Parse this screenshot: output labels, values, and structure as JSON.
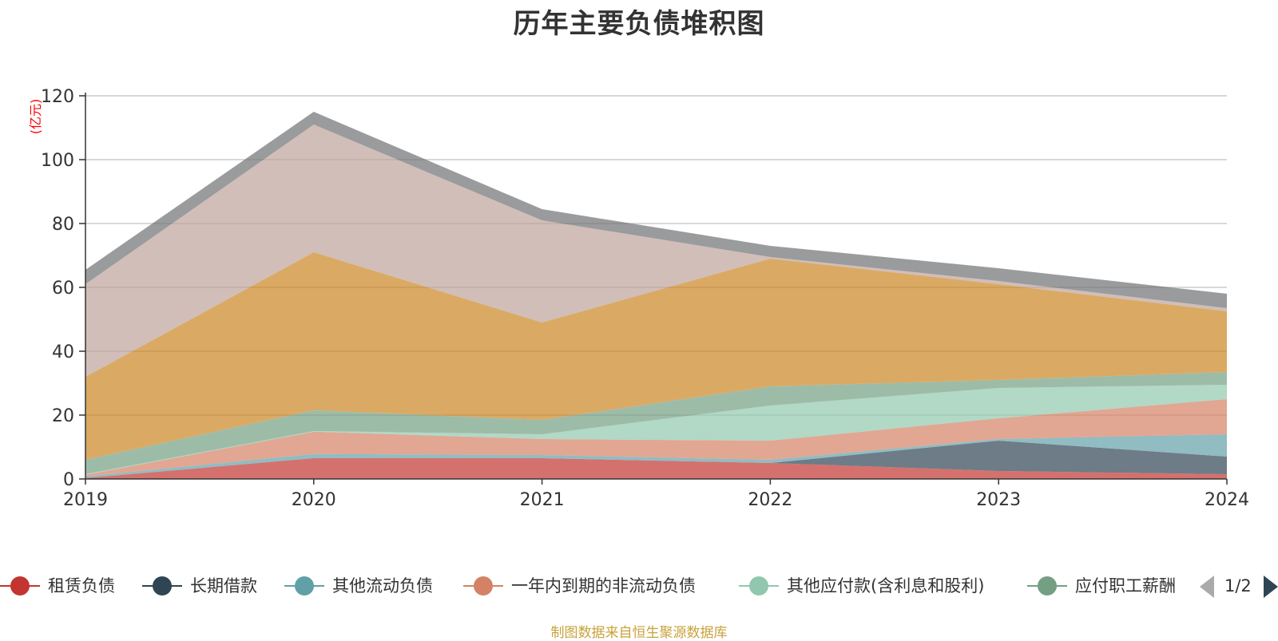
{
  "title": "历年主要负债堆积图",
  "source_note": "制图数据来自恒生聚源数据库",
  "legend_page": "1/2",
  "chart_data": {
    "type": "area",
    "stacked": true,
    "title": "历年主要负债堆积图",
    "ylabel": "(亿元)",
    "xlabel": "",
    "x": [
      "2019",
      "2020",
      "2021",
      "2022",
      "2023",
      "2024"
    ],
    "ylim": [
      0,
      120
    ],
    "yticks": [
      0,
      20,
      40,
      60,
      80,
      100,
      120
    ],
    "grid": true,
    "legend_position": "bottom",
    "series": [
      {
        "name": "租赁负债",
        "color": "#c23531",
        "values": [
          0.3,
          6.5,
          6.5,
          5.0,
          2.5,
          1.5
        ]
      },
      {
        "name": "长期借款",
        "color": "#2f4554",
        "values": [
          0.0,
          0.0,
          0.0,
          0.0,
          9.5,
          5.5
        ]
      },
      {
        "name": "其他流动负债",
        "color": "#61a0a8",
        "values": [
          0.5,
          1.3,
          1.0,
          1.0,
          0.5,
          7.0
        ]
      },
      {
        "name": "一年内到期的非流动负债",
        "color": "#d48265",
        "values": [
          0.5,
          7.0,
          5.0,
          6.0,
          6.5,
          11.0
        ]
      },
      {
        "name": "其他应付款(含利息和股利)",
        "color": "#91c7ae",
        "values": [
          0.2,
          0.2,
          1.5,
          11.0,
          9.5,
          4.5
        ]
      },
      {
        "name": "应付职工薪酬",
        "color": "#749f83",
        "values": [
          4.5,
          6.5,
          4.5,
          6.0,
          2.5,
          4.0
        ]
      },
      {
        "name": "",
        "color": "#ca8622",
        "values": [
          26.0,
          49.5,
          30.5,
          40.0,
          30.0,
          19.0
        ]
      },
      {
        "name": "",
        "color": "#bda29a",
        "values": [
          29.0,
          40.0,
          32.0,
          0.5,
          1.0,
          1.0
        ]
      },
      {
        "name": "",
        "color": "#6e7074",
        "values": [
          4.5,
          4.0,
          3.5,
          3.5,
          4.0,
          4.5
        ]
      }
    ]
  }
}
